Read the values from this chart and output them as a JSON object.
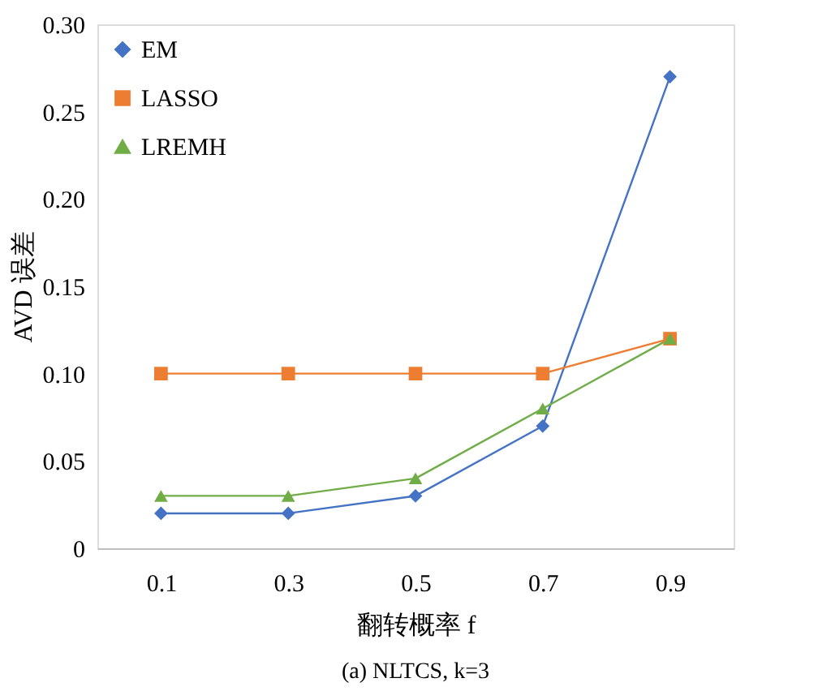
{
  "chart_data": {
    "type": "line",
    "title": "(a) NLTCS, k=3",
    "xlabel": "翻转概率 f",
    "ylabel": "AVD 误差",
    "x": [
      0.1,
      0.3,
      0.5,
      0.7,
      0.9
    ],
    "series": [
      {
        "name": "EM",
        "color": "#4472c4",
        "marker": "diamond",
        "values": [
          0.02,
          0.02,
          0.03,
          0.07,
          0.27
        ]
      },
      {
        "name": "LASSO",
        "color": "#ed7d31",
        "marker": "square",
        "values": [
          0.1,
          0.1,
          0.1,
          0.1,
          0.12
        ]
      },
      {
        "name": "LREMH",
        "color": "#70ad47",
        "marker": "triangle",
        "values": [
          0.03,
          0.03,
          0.04,
          0.08,
          0.12
        ]
      }
    ],
    "xlim": [
      0,
      1.0
    ],
    "xticks": [
      0.1,
      0.3,
      0.5,
      0.7,
      0.9
    ],
    "ylim": [
      0,
      0.3
    ],
    "yticks": [
      0,
      0.05,
      {
        "value": 0.1,
        "label": "0.10"
      },
      0.15,
      {
        "value": 0.2,
        "label": "0.20"
      },
      0.25,
      {
        "value": 0.3,
        "label": "0.30"
      }
    ],
    "grid": false,
    "legend": "top left",
    "line_style": "solid"
  }
}
